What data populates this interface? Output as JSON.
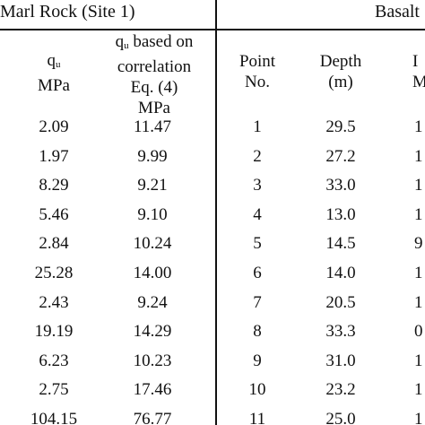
{
  "group_headers": {
    "left": "Marl Rock (Site 1)",
    "right": "Basalt"
  },
  "column_headers": {
    "qu_symbol": "q",
    "qu_sub": "u",
    "qu_unit": "MPa",
    "qu_corr_sym": "q",
    "qu_corr_sub": "u",
    "qu_corr_line1_tail": " based on",
    "qu_corr_line2": "correlation",
    "qu_corr_line3": "Eq. (4)",
    "qu_corr_line4": "MPa",
    "point_line1": "Point",
    "point_line2": "No.",
    "depth_line1": "Depth",
    "depth_line2": "(m)",
    "partial_line1": "I",
    "partial_line2": "M"
  },
  "rows": [
    {
      "qu": "2.09",
      "qu_corr": "11.47",
      "point": "1",
      "depth": "29.5",
      "partial": "1"
    },
    {
      "qu": "1.97",
      "qu_corr": "9.99",
      "point": "2",
      "depth": "27.2",
      "partial": "1"
    },
    {
      "qu": "8.29",
      "qu_corr": "9.21",
      "point": "3",
      "depth": "33.0",
      "partial": "1"
    },
    {
      "qu": "5.46",
      "qu_corr": "9.10",
      "point": "4",
      "depth": "13.0",
      "partial": "1"
    },
    {
      "qu": "2.84",
      "qu_corr": "10.24",
      "point": "5",
      "depth": "14.5",
      "partial": "9"
    },
    {
      "qu": "25.28",
      "qu_corr": "14.00",
      "point": "6",
      "depth": "14.0",
      "partial": "1"
    },
    {
      "qu": "2.43",
      "qu_corr": "9.24",
      "point": "7",
      "depth": "20.5",
      "partial": "1"
    },
    {
      "qu": "19.19",
      "qu_corr": "14.29",
      "point": "8",
      "depth": "33.3",
      "partial": "0"
    },
    {
      "qu": "6.23",
      "qu_corr": "10.23",
      "point": "9",
      "depth": "31.0",
      "partial": "1"
    },
    {
      "qu": "2.75",
      "qu_corr": "17.46",
      "point": "10",
      "depth": "23.2",
      "partial": "1"
    },
    {
      "qu": "104.15",
      "qu_corr": "76.77",
      "point": "11",
      "depth": "25.0",
      "partial": "1"
    }
  ]
}
